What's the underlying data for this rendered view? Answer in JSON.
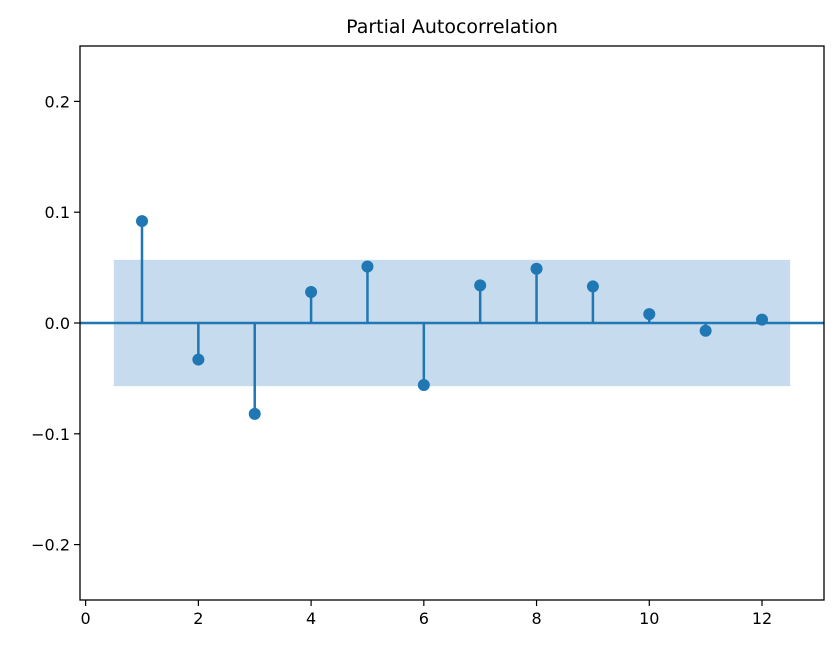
{
  "chart_data": {
    "type": "stem",
    "title": "Partial Autocorrelation",
    "xlabel": "",
    "ylabel": "",
    "xlim": [
      -0.1,
      13.1
    ],
    "ylim": [
      -0.25,
      0.25
    ],
    "x_ticks": [
      0,
      2,
      4,
      6,
      8,
      10,
      12
    ],
    "y_ticks": [
      -0.2,
      -0.1,
      0.0,
      0.1,
      0.2
    ],
    "y_tick_labels": [
      "−0.2",
      "−0.1",
      "0.0",
      "0.1",
      "0.2"
    ],
    "grid": false,
    "lags": [
      1,
      2,
      3,
      4,
      5,
      6,
      7,
      8,
      9,
      10,
      11,
      12
    ],
    "values": [
      0.092,
      -0.033,
      -0.082,
      0.028,
      0.051,
      -0.056,
      0.034,
      0.049,
      0.033,
      0.008,
      -0.007,
      0.003
    ],
    "confidence_band": {
      "x_start": 0.5,
      "x_end": 12.5,
      "upper": 0.057,
      "lower": -0.057
    },
    "colors": {
      "stem": "#1f77b4",
      "band": "#c6dcee",
      "axes": "#000000"
    }
  }
}
